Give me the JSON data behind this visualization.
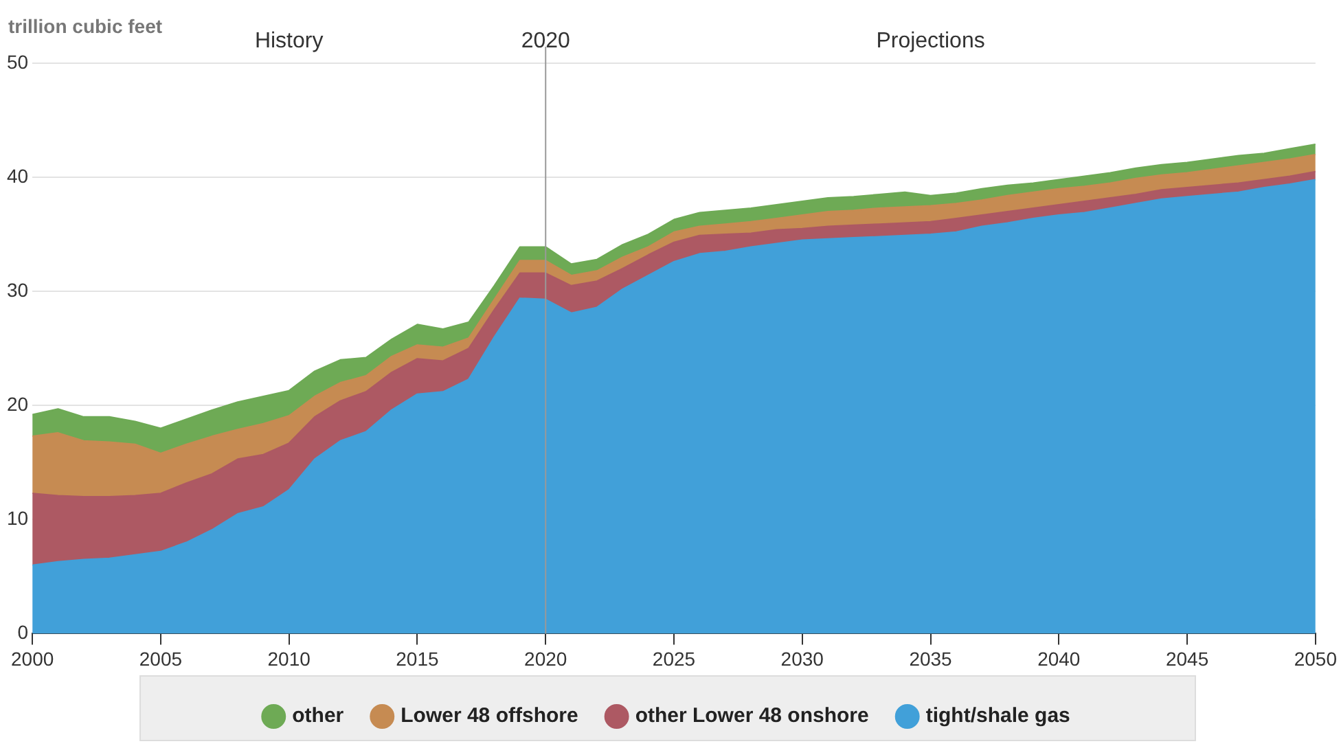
{
  "chart_data": {
    "type": "area",
    "stacked": true,
    "ylabel": "trillion cubic feet",
    "x": [
      2000,
      2001,
      2002,
      2003,
      2004,
      2005,
      2006,
      2007,
      2008,
      2009,
      2010,
      2011,
      2012,
      2013,
      2014,
      2015,
      2016,
      2017,
      2018,
      2019,
      2020,
      2021,
      2022,
      2023,
      2024,
      2025,
      2026,
      2027,
      2028,
      2029,
      2030,
      2031,
      2032,
      2033,
      2034,
      2035,
      2036,
      2037,
      2038,
      2039,
      2040,
      2041,
      2042,
      2043,
      2044,
      2045,
      2046,
      2047,
      2048,
      2049,
      2050
    ],
    "series": [
      {
        "name": "tight/shale gas",
        "color": "#41a0d9",
        "values": [
          6.0,
          6.3,
          6.5,
          6.6,
          6.9,
          7.2,
          8.0,
          9.1,
          10.5,
          11.1,
          12.6,
          15.3,
          16.9,
          17.7,
          19.6,
          21.0,
          21.2,
          22.3,
          26.0,
          29.4,
          29.3,
          28.1,
          28.6,
          30.2,
          31.4,
          32.6,
          33.3,
          33.5,
          33.9,
          34.2,
          34.5,
          34.6,
          34.7,
          34.8,
          34.9,
          35.0,
          35.2,
          35.7,
          36.0,
          36.4,
          36.7,
          36.9,
          37.3,
          37.7,
          38.1,
          38.3,
          38.5,
          38.7,
          39.1,
          39.4,
          39.8
        ]
      },
      {
        "name": "other Lower 48 onshore",
        "color": "#ad5963",
        "values": [
          6.3,
          5.8,
          5.5,
          5.4,
          5.2,
          5.1,
          5.2,
          4.9,
          4.8,
          4.6,
          4.1,
          3.7,
          3.5,
          3.5,
          3.3,
          3.1,
          2.7,
          2.7,
          2.4,
          2.2,
          2.3,
          2.4,
          2.3,
          1.8,
          1.8,
          1.7,
          1.6,
          1.5,
          1.2,
          1.2,
          1.0,
          1.1,
          1.1,
          1.1,
          1.1,
          1.1,
          1.2,
          1.0,
          1.0,
          0.9,
          0.9,
          1.0,
          0.9,
          0.8,
          0.8,
          0.8,
          0.8,
          0.8,
          0.7,
          0.7,
          0.7
        ]
      },
      {
        "name": "Lower 48 offshore",
        "color": "#c68b52",
        "values": [
          5.0,
          5.5,
          4.9,
          4.8,
          4.5,
          3.5,
          3.4,
          3.3,
          2.6,
          2.7,
          2.4,
          1.8,
          1.6,
          1.4,
          1.4,
          1.2,
          1.2,
          0.9,
          0.9,
          1.1,
          1.1,
          0.9,
          0.9,
          1.0,
          0.7,
          0.9,
          0.8,
          0.9,
          1.0,
          1.0,
          1.2,
          1.3,
          1.3,
          1.4,
          1.4,
          1.4,
          1.3,
          1.3,
          1.4,
          1.4,
          1.4,
          1.3,
          1.3,
          1.4,
          1.3,
          1.3,
          1.4,
          1.5,
          1.5,
          1.5,
          1.5
        ]
      },
      {
        "name": "other",
        "color": "#6eaa55",
        "values": [
          1.9,
          2.1,
          2.1,
          2.2,
          2.0,
          2.2,
          2.2,
          2.3,
          2.4,
          2.4,
          2.2,
          2.2,
          2.0,
          1.6,
          1.5,
          1.8,
          1.6,
          1.4,
          1.2,
          1.2,
          1.2,
          1.0,
          1.0,
          1.1,
          1.1,
          1.1,
          1.2,
          1.2,
          1.2,
          1.2,
          1.2,
          1.2,
          1.2,
          1.2,
          1.3,
          0.9,
          0.9,
          1.0,
          0.9,
          0.8,
          0.8,
          0.9,
          0.9,
          0.9,
          0.9,
          0.9,
          0.9,
          0.9,
          0.8,
          0.9,
          0.9
        ]
      }
    ],
    "xlim": [
      2000,
      2050
    ],
    "xticks": [
      2000,
      2005,
      2010,
      2015,
      2020,
      2025,
      2030,
      2035,
      2040,
      2045,
      2050
    ],
    "ylim": [
      0,
      50
    ],
    "yticks": [
      0,
      10,
      20,
      30,
      40,
      50
    ],
    "ref_lines": [
      {
        "axis": "x",
        "value": 2020,
        "label": "2020",
        "color": "#999999"
      }
    ],
    "annotations": [
      "History",
      "Projections"
    ],
    "grid": "y",
    "legend": "bottom",
    "marker": "none"
  }
}
